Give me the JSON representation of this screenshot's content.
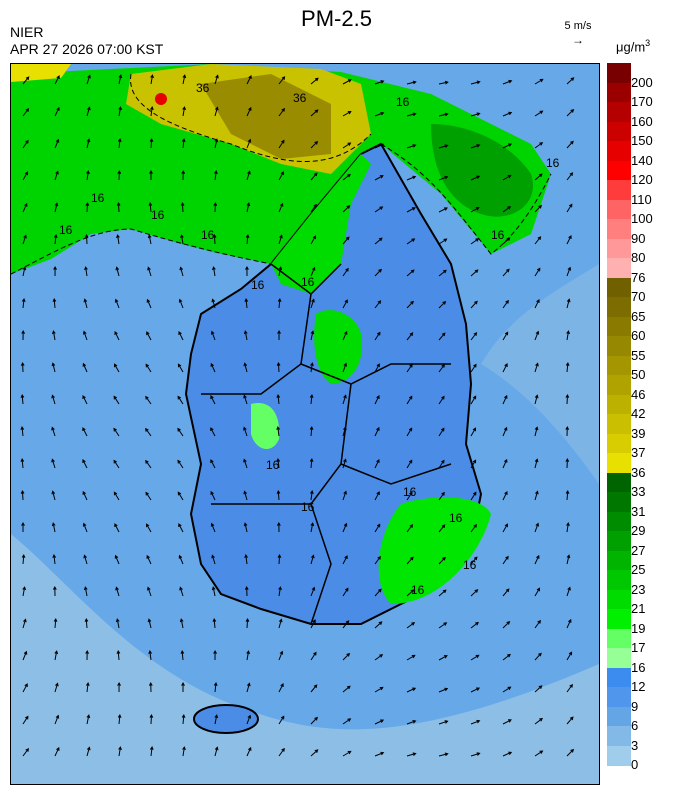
{
  "header": {
    "title": "PM-2.5",
    "agency": "NIER",
    "timestamp": "APR 27 2026 07:00 KST",
    "wind_reference": "5 m/s",
    "wind_reference_arrow": "→",
    "unit_base": "μg/m",
    "unit_exponent": "3"
  },
  "legend": {
    "levels": [
      {
        "label": "200",
        "color": "#780000"
      },
      {
        "label": "170",
        "color": "#9a0000"
      },
      {
        "label": "160",
        "color": "#b40000"
      },
      {
        "label": "150",
        "color": "#cd0000"
      },
      {
        "label": "140",
        "color": "#e60000"
      },
      {
        "label": "120",
        "color": "#ff0000"
      },
      {
        "label": "110",
        "color": "#ff3c3c"
      },
      {
        "label": "100",
        "color": "#ff6464"
      },
      {
        "label": "90",
        "color": "#ff7f7f"
      },
      {
        "label": "80",
        "color": "#ff9999"
      },
      {
        "label": "76",
        "color": "#ffb0b0"
      },
      {
        "label": "70",
        "color": "#706000"
      },
      {
        "label": "65",
        "color": "#7d6d00"
      },
      {
        "label": "60",
        "color": "#8a7b00"
      },
      {
        "label": "55",
        "color": "#968800"
      },
      {
        "label": "50",
        "color": "#a39600"
      },
      {
        "label": "46",
        "color": "#b0a300"
      },
      {
        "label": "42",
        "color": "#bdb100"
      },
      {
        "label": "39",
        "color": "#cabf00"
      },
      {
        "label": "37",
        "color": "#d8cd00"
      },
      {
        "label": "36",
        "color": "#e8e000"
      },
      {
        "label": "33",
        "color": "#006400"
      },
      {
        "label": "31",
        "color": "#007800"
      },
      {
        "label": "29",
        "color": "#008c00"
      },
      {
        "label": "27",
        "color": "#00a000"
      },
      {
        "label": "25",
        "color": "#00b400"
      },
      {
        "label": "23",
        "color": "#00c800"
      },
      {
        "label": "21",
        "color": "#00dc00"
      },
      {
        "label": "19",
        "color": "#00f000"
      },
      {
        "label": "17",
        "color": "#64ff64"
      },
      {
        "label": "16",
        "color": "#96ff96"
      },
      {
        "label": "12",
        "color": "#3c8cf0"
      },
      {
        "label": "9",
        "color": "#5096ec"
      },
      {
        "label": "6",
        "color": "#64a5e6"
      },
      {
        "label": "3",
        "color": "#82b9e6"
      },
      {
        "label": "0",
        "color": "#a0cdeb"
      }
    ]
  },
  "map": {
    "sea_color": "#66a8e8",
    "land_low_color": "#4f90e6",
    "contour_labels": [
      "16",
      "16",
      "16",
      "16",
      "16",
      "16",
      "16",
      "16",
      "16",
      "16",
      "16",
      "16",
      "16",
      "36",
      "36",
      "16",
      "16"
    ]
  }
}
